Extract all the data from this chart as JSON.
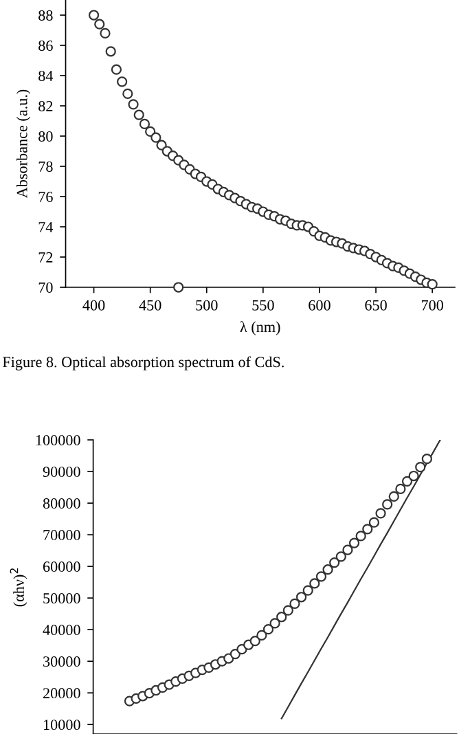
{
  "chart_data": [
    {
      "type": "scatter",
      "xlabel": "λ (nm)",
      "ylabel": "Absorbance (a.u.)",
      "marker": "circle",
      "annotations": [
        "Figure 8. Optical absorption spectrum of CdS."
      ],
      "xlim": [
        375,
        720
      ],
      "xticks": [
        400,
        450,
        500,
        550,
        600,
        650,
        700
      ],
      "ylim": [
        70,
        89
      ],
      "yticks": [
        70,
        72,
        74,
        76,
        78,
        80,
        82,
        84,
        86,
        88
      ],
      "series": [
        {
          "color": "#333333",
          "x": [
            400,
            405,
            410,
            415,
            420,
            425,
            430,
            435,
            440,
            445,
            450,
            455,
            460,
            465,
            470,
            475,
            480,
            485,
            490,
            495,
            500,
            505,
            510,
            515,
            520,
            525,
            530,
            535,
            540,
            545,
            550,
            555,
            560,
            565,
            570,
            575,
            580,
            585,
            590,
            595,
            600,
            605,
            610,
            615,
            620,
            625,
            630,
            635,
            640,
            645,
            650,
            655,
            660,
            665,
            670,
            675,
            680,
            685,
            690,
            695,
            700
          ],
          "values": [
            88.0,
            87.4,
            86.8,
            85.6,
            84.4,
            83.6,
            82.8,
            82.1,
            81.4,
            80.8,
            80.3,
            79.9,
            79.4,
            79.0,
            78.7,
            78.4,
            78.1,
            77.8,
            77.5,
            77.3,
            77.0,
            76.8,
            76.5,
            76.3,
            76.1,
            75.9,
            75.7,
            75.5,
            75.3,
            75.2,
            75.0,
            74.8,
            74.7,
            74.5,
            74.4,
            74.2,
            74.1,
            74.1,
            74.0,
            73.7,
            73.4,
            73.3,
            73.1,
            73.0,
            72.9,
            72.7,
            72.6,
            72.5,
            72.4,
            72.2,
            72.0,
            71.8,
            71.6,
            71.4,
            71.3,
            71.1,
            70.9,
            70.7,
            70.5,
            70.3,
            70.2
          ]
        },
        {
          "color": "#333333",
          "x": [
            475
          ],
          "values": [
            70
          ]
        }
      ]
    },
    {
      "type": "scatter",
      "ylabel": "(αhν)$^{2}$",
      "marker": "circle",
      "tick_labels": "y",
      "categories": [
        null,
        null,
        null,
        null,
        null,
        null,
        null,
        null,
        null,
        null,
        null,
        null,
        null,
        null,
        null,
        null,
        null,
        null,
        null,
        null,
        null,
        null,
        null,
        null,
        null,
        null,
        null,
        null,
        null,
        null,
        null,
        null,
        null,
        null,
        null,
        null,
        null,
        null,
        null,
        null,
        null,
        null,
        null,
        null,
        null,
        null,
        null,
        null,
        null,
        null,
        null,
        null,
        null,
        null,
        null
      ],
      "ylim": [
        7000,
        100000
      ],
      "yticks": [
        10000,
        20000,
        30000,
        40000,
        50000,
        60000,
        70000,
        80000,
        90000,
        100000
      ],
      "series": [
        {
          "type": "scatter",
          "color": "#333333",
          "values": [
            null,
            null,
            null,
            null,
            null,
            17400,
            18200,
            19000,
            19900,
            20800,
            21700,
            22600,
            23600,
            24500,
            25400,
            26300,
            27300,
            28000,
            29000,
            30000,
            30900,
            32300,
            33800,
            35200,
            36400,
            38200,
            40100,
            42000,
            44000,
            46100,
            48200,
            50300,
            52400,
            54600,
            56800,
            59000,
            61200,
            63100,
            65200,
            67400,
            69600,
            71800,
            73900,
            76800,
            79600,
            82100,
            84500,
            86900,
            88600,
            91400,
            94000,
            null,
            null,
            null,
            null
          ]
        },
        {
          "type": "line",
          "marker": "none",
          "color": "#333333",
          "values": [
            null,
            null,
            null,
            null,
            null,
            null,
            null,
            null,
            null,
            null,
            null,
            null,
            null,
            null,
            null,
            null,
            null,
            null,
            null,
            null,
            null,
            null,
            null,
            null,
            null,
            null,
            null,
            null,
            11900,
            15600,
            19300,
            23000,
            26600,
            30300,
            34000,
            37600,
            41300,
            45000,
            48600,
            52300,
            56000,
            59600,
            63300,
            67000,
            70600,
            74300,
            78000,
            81700,
            85300,
            89000,
            92700,
            96300,
            100000,
            null,
            null
          ]
        }
      ]
    }
  ]
}
